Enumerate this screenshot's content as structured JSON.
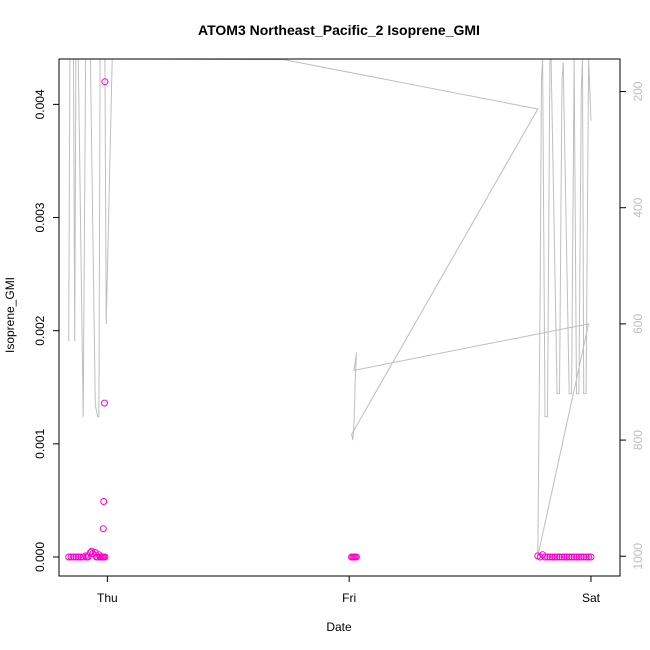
{
  "chart_data": {
    "type": "scatter",
    "title": "ATOM3 Northeast_Pacific_2 Isoprene_GMI",
    "xlabel": "Date",
    "ylabel": "Isoprene_GMI",
    "x_ticks": [
      {
        "label": "Thu",
        "value": 1.0
      },
      {
        "label": "Fri",
        "value": 2.0
      },
      {
        "label": "Sat",
        "value": 3.0
      }
    ],
    "xlim": [
      0.8,
      3.12
    ],
    "y_ticks": [
      {
        "label": "0.000",
        "value": 0.0
      },
      {
        "label": "0.001",
        "value": 0.001
      },
      {
        "label": "0.002",
        "value": 0.002
      },
      {
        "label": "0.003",
        "value": 0.003
      },
      {
        "label": "0.004",
        "value": 0.004
      }
    ],
    "ylim": [
      -0.000168,
      0.004401
    ],
    "right_axis": {
      "ticks": [
        {
          "label": "200",
          "value": 200
        },
        {
          "label": "400",
          "value": 400
        },
        {
          "label": "600",
          "value": 600
        },
        {
          "label": "800",
          "value": 800
        },
        {
          "label": "1000",
          "value": 1000
        }
      ],
      "lim": [
        1034,
        144
      ],
      "color": "#bebebe"
    },
    "series": [
      {
        "color": "#ff00c8",
        "marker": "open-circle",
        "points": [
          [
            0.84,
            0.0
          ],
          [
            0.85,
            0.0
          ],
          [
            0.86,
            0.0
          ],
          [
            0.87,
            0.0
          ],
          [
            0.88,
            0.0
          ],
          [
            0.89,
            0.0
          ],
          [
            0.9,
            0.0
          ],
          [
            0.91,
            1e-05
          ],
          [
            0.915,
            0.0
          ],
          [
            0.92,
            0.0
          ],
          [
            0.93,
            4e-05
          ],
          [
            0.935,
            5e-05
          ],
          [
            0.94,
            3e-05
          ],
          [
            0.95,
            4e-05
          ],
          [
            0.955,
            0.0
          ],
          [
            0.96,
            0.0
          ],
          [
            0.965,
            2e-05
          ],
          [
            0.97,
            0.0
          ],
          [
            0.975,
            0.0
          ],
          [
            0.98,
            0.0
          ],
          [
            0.985,
            0.0
          ],
          [
            0.99,
            0.0
          ],
          [
            0.983,
            0.00025
          ],
          [
            0.985,
            0.00049
          ],
          [
            0.988,
            0.00136
          ],
          [
            0.99,
            0.0042
          ],
          [
            2.01,
            0.0
          ],
          [
            2.015,
            0.0
          ],
          [
            2.02,
            0.0
          ],
          [
            2.025,
            0.0
          ],
          [
            2.03,
            0.0
          ],
          [
            2.78,
            1e-05
          ],
          [
            2.79,
            0.0
          ],
          [
            2.8,
            2e-05
          ],
          [
            2.81,
            0.0
          ],
          [
            2.82,
            0.0
          ],
          [
            2.83,
            0.0
          ],
          [
            2.84,
            0.0
          ],
          [
            2.85,
            0.0
          ],
          [
            2.86,
            0.0
          ],
          [
            2.87,
            0.0
          ],
          [
            2.88,
            0.0
          ],
          [
            2.89,
            0.0
          ],
          [
            2.9,
            0.0
          ],
          [
            2.91,
            0.0
          ],
          [
            2.92,
            0.0
          ],
          [
            2.93,
            0.0
          ],
          [
            2.94,
            0.0
          ],
          [
            2.95,
            0.0
          ],
          [
            2.96,
            0.0
          ],
          [
            2.97,
            0.0
          ],
          [
            2.98,
            0.0
          ],
          [
            2.99,
            0.0
          ],
          [
            3.0,
            0.0
          ]
        ]
      },
      {
        "color": "#bebebe",
        "axis": "right",
        "type": "line",
        "points": [
          [
            0.84,
            630
          ],
          [
            0.845,
            100
          ],
          [
            0.86,
            100
          ],
          [
            0.865,
            630
          ],
          [
            0.87,
            100
          ],
          [
            0.88,
            100
          ],
          [
            0.9,
            760
          ],
          [
            0.91,
            100
          ],
          [
            0.93,
            100
          ],
          [
            0.95,
            740
          ],
          [
            0.96,
            760
          ],
          [
            0.965,
            760
          ],
          [
            0.97,
            110
          ],
          [
            0.985,
            110
          ],
          [
            0.99,
            130
          ],
          [
            0.995,
            600
          ],
          [
            1.02,
            100
          ],
          [
            1.73,
            145
          ],
          [
            2.78,
            230
          ],
          [
            2.01,
            790
          ],
          [
            2.015,
            800
          ],
          [
            2.02,
            770
          ],
          [
            2.025,
            700
          ],
          [
            2.03,
            650
          ],
          [
            2.02,
            680
          ],
          [
            2.99,
            600
          ],
          [
            2.78,
            1000
          ],
          [
            2.79,
            540
          ],
          [
            2.795,
            180
          ],
          [
            2.8,
            145
          ],
          [
            2.81,
            760
          ],
          [
            2.82,
            760
          ],
          [
            2.83,
            140
          ],
          [
            2.835,
            145
          ],
          [
            2.86,
            720
          ],
          [
            2.87,
            720
          ],
          [
            2.88,
            180
          ],
          [
            2.885,
            150
          ],
          [
            2.91,
            720
          ],
          [
            2.92,
            720
          ],
          [
            2.93,
            140
          ],
          [
            2.94,
            720
          ],
          [
            2.95,
            720
          ],
          [
            2.96,
            200
          ],
          [
            2.965,
            145
          ],
          [
            2.97,
            720
          ],
          [
            2.98,
            720
          ],
          [
            2.99,
            140
          ],
          [
            3.0,
            250
          ]
        ]
      }
    ]
  }
}
